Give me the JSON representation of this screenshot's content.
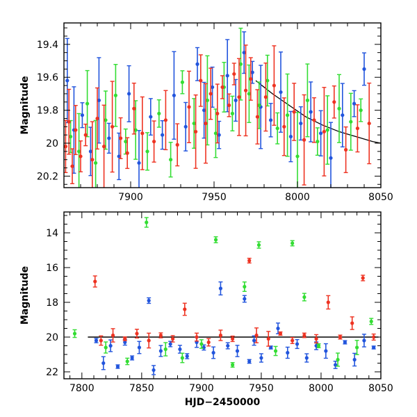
{
  "chart_data": [
    {
      "type": "scatter",
      "title": "",
      "xlabel": "",
      "ylabel": "Magnitude",
      "xlim": [
        7860,
        8050
      ],
      "ylim": [
        20.27,
        19.27
      ],
      "y_inverted": true,
      "x_ticks": [
        "7900",
        "7950",
        "8000",
        "8050"
      ],
      "y_ticks": [
        "19.4",
        "19.6",
        "19.8",
        "20",
        "20.2"
      ],
      "error_bars": true,
      "model_curve": {
        "x": [
          7975,
          7985,
          7995,
          8005,
          8015,
          8025,
          8035,
          8045,
          8050
        ],
        "y": [
          19.62,
          19.7,
          19.77,
          19.84,
          19.89,
          19.93,
          19.96,
          19.99,
          20.0
        ]
      },
      "series": [
        {
          "name": "",
          "color": "#2255dd",
          "x": [
            7862,
            7866,
            7871,
            7876,
            7881,
            7887,
            7893,
            7899,
            7905,
            7912,
            7919,
            7926,
            7933,
            7940,
            7944,
            7949,
            7953,
            7958,
            7963,
            7968,
            7973,
            7978,
            7984,
            7990,
            7996,
            8002,
            8008,
            8014,
            8020,
            8027,
            8034,
            8040
          ],
          "y": [
            19.62,
            19.92,
            19.83,
            20.05,
            19.74,
            19.97,
            20.08,
            19.7,
            20.12,
            19.84,
            19.95,
            19.71,
            19.9,
            19.52,
            19.8,
            19.66,
            19.95,
            19.59,
            19.74,
            19.45,
            19.57,
            19.78,
            19.86,
            19.69,
            19.96,
            19.88,
            19.81,
            19.94,
            20.09,
            19.83,
            19.76,
            19.55
          ]
        },
        {
          "name": "",
          "color": "#33dd33",
          "x": [
            7864,
            7869,
            7874,
            7879,
            7885,
            7891,
            7897,
            7903,
            7910,
            7917,
            7924,
            7931,
            7938,
            7946,
            7951,
            7956,
            7961,
            7966,
            7971,
            7977,
            7982,
            7988,
            7994,
            8000,
            8006,
            8012,
            8018,
            8025,
            8032,
            8038
          ],
          "y": [
            19.96,
            20.05,
            19.76,
            20.12,
            19.86,
            19.71,
            19.99,
            19.92,
            20.05,
            19.82,
            20.1,
            19.63,
            19.88,
            19.74,
            19.94,
            19.66,
            19.82,
            19.52,
            19.7,
            19.77,
            19.62,
            19.91,
            19.83,
            20.08,
            19.74,
            19.99,
            19.92,
            19.79,
            19.87,
            19.8
          ]
        },
        {
          "name": "",
          "color": "#ee3322",
          "x": [
            7861,
            7863,
            7865,
            7867,
            7870,
            7873,
            7877,
            7880,
            7884,
            7889,
            7894,
            7898,
            7902,
            7907,
            7914,
            7921,
            7928,
            7935,
            7939,
            7942,
            7945,
            7948,
            7952,
            7955,
            7959,
            7962,
            7965,
            7969,
            7972,
            7976,
            7981,
            7986,
            7992,
            7998,
            8004,
            8010,
            8016,
            8022,
            8029,
            8036,
            8043
          ],
          "y": [
            20.02,
            19.87,
            20.14,
            19.92,
            20.08,
            19.95,
            20.1,
            19.85,
            20.02,
            19.9,
            19.97,
            20.06,
            19.79,
            19.94,
            19.99,
            19.86,
            20.01,
            19.78,
            19.93,
            19.62,
            19.88,
            19.7,
            19.82,
            19.66,
            19.77,
            19.58,
            19.72,
            19.68,
            19.61,
            19.84,
            19.72,
            19.65,
            19.9,
            19.81,
            19.98,
            19.86,
            19.93,
            19.75,
            20.04,
            19.91,
            19.88
          ]
        }
      ]
    },
    {
      "type": "scatter",
      "title": "",
      "xlabel": "HJD−2450000",
      "ylabel": "Magnitude",
      "xlim": [
        7785,
        8050
      ],
      "ylim": [
        22.4,
        12.8
      ],
      "y_inverted": true,
      "x_ticks": [
        "7800",
        "7850",
        "7900",
        "7950",
        "8000",
        "8050"
      ],
      "y_ticks": [
        "14",
        "16",
        "18",
        "20",
        "22"
      ],
      "error_bars": true,
      "reference_line": {
        "y": 20.0,
        "x": [
          7805,
          8048
        ]
      },
      "series": [
        {
          "name": "",
          "color": "#2255dd",
          "x": [
            7812,
            7818,
            7824,
            7830,
            7836,
            7842,
            7848,
            7856,
            7860,
            7866,
            7874,
            7882,
            7888,
            7896,
            7902,
            7910,
            7916,
            7922,
            7930,
            7936,
            7940,
            7944,
            7950,
            7958,
            7964,
            7972,
            7980,
            7988,
            7996,
            8004,
            8012,
            8020,
            8028,
            8036,
            8044
          ],
          "y": [
            20.2,
            21.5,
            20.5,
            21.7,
            20.3,
            21.2,
            20.6,
            17.9,
            21.9,
            20.8,
            20.4,
            20.7,
            21.1,
            20.3,
            20.6,
            20.9,
            17.2,
            20.5,
            20.8,
            17.8,
            21.4,
            20.2,
            21.2,
            20.6,
            19.5,
            20.9,
            20.4,
            21.2,
            20.5,
            20.8,
            21.6,
            20.3,
            21.3,
            20.2,
            20.6
          ]
        },
        {
          "name": "",
          "color": "#33dd33",
          "x": [
            7794,
            7820,
            7838,
            7854,
            7870,
            7884,
            7900,
            7912,
            7926,
            7936,
            7948,
            7962,
            7976,
            7986,
            7998,
            8014,
            8030,
            8042
          ],
          "y": [
            19.8,
            20.6,
            21.4,
            13.4,
            20.7,
            21.2,
            20.4,
            14.4,
            21.6,
            17.1,
            14.7,
            20.8,
            14.6,
            17.7,
            20.5,
            21.3,
            20.6,
            19.1
          ]
        },
        {
          "name": "",
          "color": "#ee3322",
          "x": [
            7811,
            7816,
            7826,
            7836,
            7846,
            7856,
            7866,
            7876,
            7886,
            7896,
            7906,
            7916,
            7926,
            7940,
            7946,
            7956,
            7966,
            7976,
            7986,
            7996,
            8006,
            8016,
            8026,
            8035,
            8044
          ],
          "y": [
            16.8,
            20.2,
            19.9,
            20.1,
            19.8,
            20.2,
            19.9,
            20.1,
            18.4,
            20.0,
            20.3,
            19.9,
            20.1,
            15.6,
            19.9,
            20.1,
            19.8,
            20.2,
            19.9,
            20.1,
            18.0,
            20.0,
            19.2,
            16.6,
            20.0
          ]
        }
      ]
    }
  ]
}
